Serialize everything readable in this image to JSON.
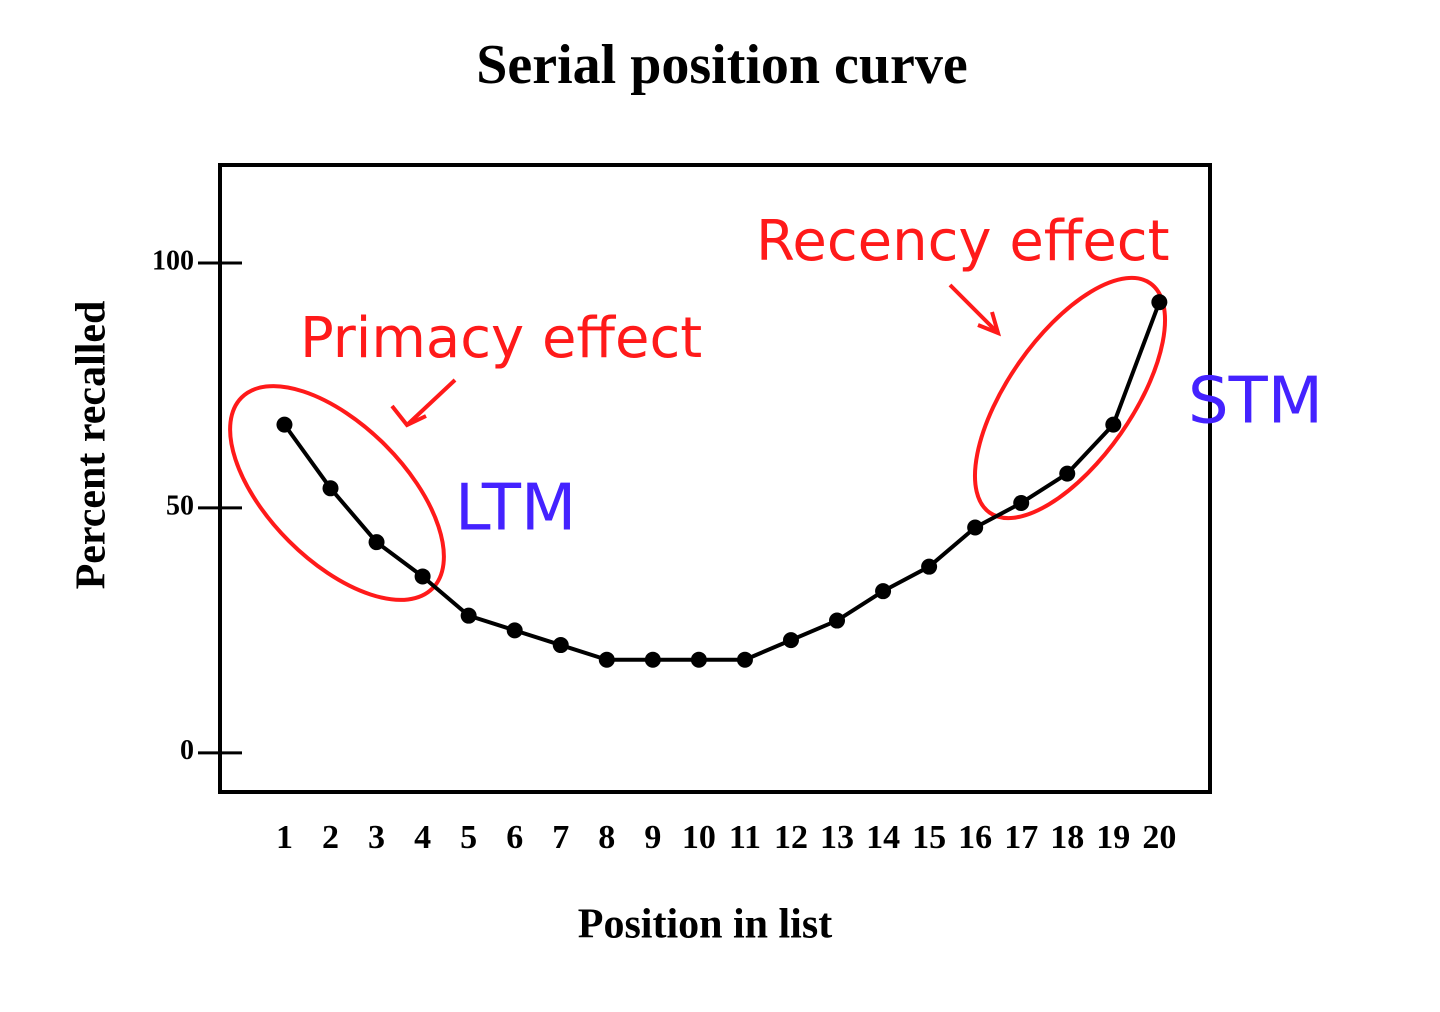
{
  "chart_data": {
    "type": "line",
    "title": "Serial position curve",
    "x_label": "Position in list",
    "y_label": "Percent recalled",
    "x": [
      1,
      2,
      3,
      4,
      5,
      6,
      7,
      8,
      9,
      10,
      11,
      12,
      13,
      14,
      15,
      16,
      17,
      18,
      19,
      20
    ],
    "values": [
      67,
      54,
      43,
      36,
      28,
      25,
      22,
      19,
      19,
      19,
      19,
      23,
      27,
      33,
      38,
      46,
      51,
      57,
      67,
      92
    ],
    "color": "#000000",
    "xlim": [
      -0.4,
      21.1
    ],
    "xticks": [
      1,
      2,
      3,
      4,
      5,
      6,
      7,
      8,
      9,
      10,
      11,
      12,
      13,
      14,
      15,
      16,
      17,
      18,
      19,
      20
    ],
    "ylim": [
      -8,
      120
    ],
    "yticks": [
      0,
      50,
      100
    ],
    "grid": false,
    "annotations": [
      {
        "text": "Primacy effect",
        "color": "#ff1a1a"
      },
      {
        "text": "Recency effect",
        "color": "#ff1a1a"
      },
      {
        "text": "LTM",
        "color": "#4422ff"
      },
      {
        "text": "STM",
        "color": "#4422ff"
      }
    ]
  }
}
